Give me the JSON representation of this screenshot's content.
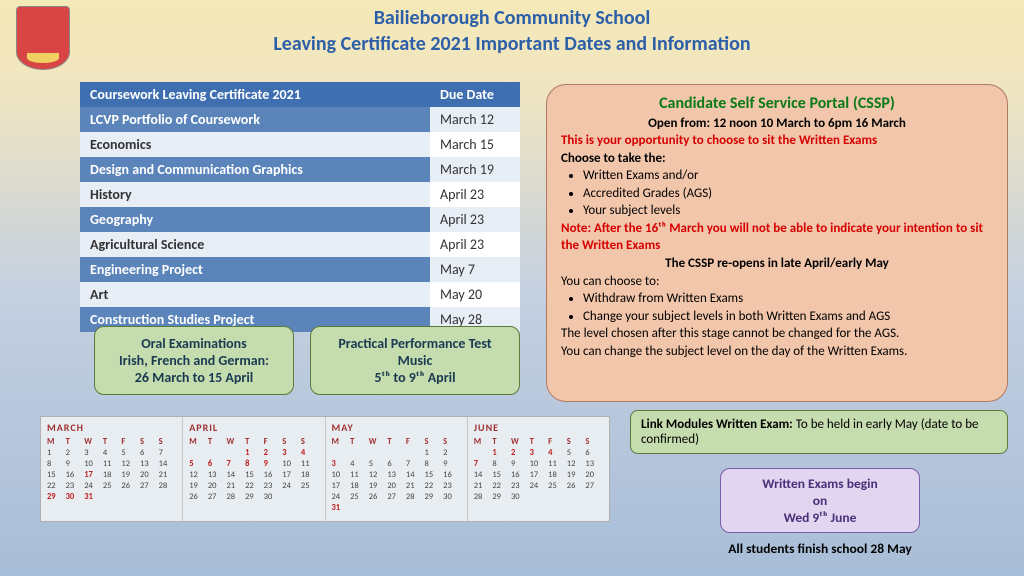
{
  "header": {
    "line1": "Bailieborough Community School",
    "line2": "Leaving Certificate 2021 Important Dates and Information"
  },
  "table": {
    "header_subject": "Coursework Leaving Certificate 2021",
    "header_date": "Due Date",
    "header_bg": "#3f6fb0",
    "row_alt_bg_dark": "#5a84ba",
    "row_alt_bg_light": "#e8eef6",
    "row_text_dark": "#ffffff",
    "row_text_light": "#333333",
    "rows": [
      {
        "subject": "LCVP Portfolio of Coursework",
        "date": "March 12"
      },
      {
        "subject": "Economics",
        "date": "March 15"
      },
      {
        "subject": "Design and Communication Graphics",
        "date": "March 19"
      },
      {
        "subject": "History",
        "date": "April 23"
      },
      {
        "subject": "Geography",
        "date": "April 23"
      },
      {
        "subject": "Agricultural Science",
        "date": "April 23"
      },
      {
        "subject": "Engineering Project",
        "date": "May 7"
      },
      {
        "subject": "Art",
        "date": "May 20"
      },
      {
        "subject": "Construction Studies Project",
        "date": "May 28"
      }
    ]
  },
  "oral": {
    "l1": "Oral Examinations",
    "l2": "Irish, French and German:",
    "l3": "26 March to 15 April"
  },
  "music": {
    "l1": "Practical Performance Test",
    "l2": "Music",
    "l3": "5ᵗʰ to 9ᵗʰ April"
  },
  "cssp": {
    "title": "Candidate Self Service Portal (CSSP)",
    "open": "Open from: 12 noon 10 March to 6pm 16 March",
    "opportunity": "This is your opportunity to choose to sit the Written Exams",
    "choose": "Choose to take the:",
    "bullets1": [
      "Written Exams and/or",
      "Accredited Grades (AGS)",
      "Your subject levels"
    ],
    "note": "Note: After the 16ᵗʰ March you will not be able to indicate your intention to sit the Written Exams",
    "reopen": "The CSSP re-opens in late April/early May",
    "canchoose": "You can choose to:",
    "bullets2": [
      "Withdraw from Written Exams",
      "Change your subject levels in both Written Exams and AGS"
    ],
    "final1": "The level chosen after this stage cannot be changed for the AGS.",
    "final2": "You can change the subject level on the day of the Written Exams."
  },
  "link_modules": {
    "label": "Link Modules Written Exam:",
    "text": " To be held in early May (date to be confirmed)"
  },
  "exams_begin": {
    "l1": "Written Exams begin",
    "l2": "on",
    "l3": "Wed 9ᵗʰ June"
  },
  "finish": "All students finish school 28 May",
  "calendars": [
    {
      "name": "MARCH",
      "start": 0,
      "days": 31,
      "red": [
        17,
        29,
        30,
        31
      ]
    },
    {
      "name": "APRIL",
      "start": 3,
      "days": 30,
      "red": [
        1,
        2,
        3,
        4,
        5,
        6,
        7,
        8,
        9
      ]
    },
    {
      "name": "MAY",
      "start": 5,
      "days": 31,
      "red": [
        3,
        31
      ]
    },
    {
      "name": "JUNE",
      "start": 1,
      "days": 30,
      "red": [
        1,
        2,
        3,
        4,
        7
      ]
    }
  ],
  "dow": [
    "M",
    "T",
    "W",
    "T",
    "F",
    "S",
    "S"
  ]
}
